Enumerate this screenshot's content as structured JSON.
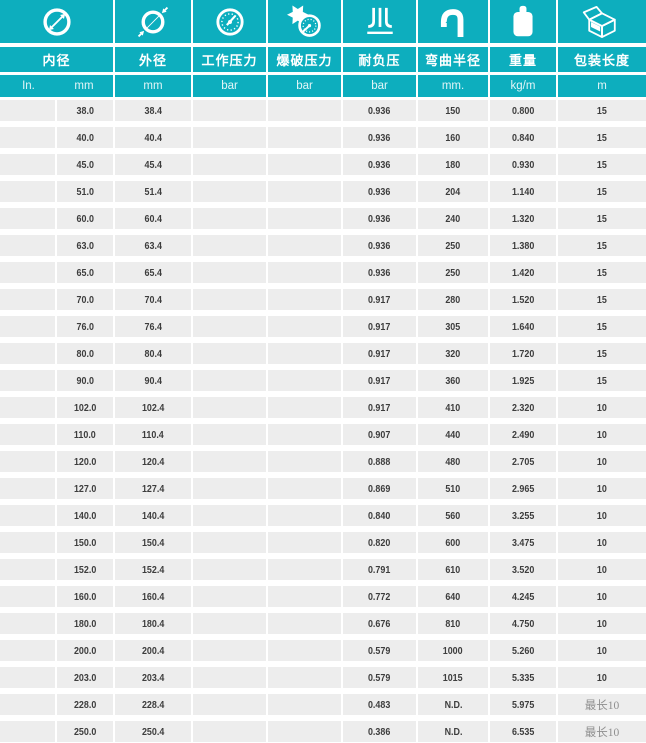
{
  "colors": {
    "accent": "#0daebe",
    "row_bg": "#ededed",
    "value_text": "#3d3d3d",
    "muted_text": "#8f8f8f",
    "header_text": "#ffffff"
  },
  "table": {
    "columns": [
      {
        "name": "内径",
        "icon": "inner-diameter-icon",
        "units": [
          "In.",
          "mm"
        ]
      },
      {
        "name": "外径",
        "icon": "outer-diameter-icon",
        "unit": "mm"
      },
      {
        "name": "工作压力",
        "icon": "working-pressure-gauge-icon",
        "unit": "bar"
      },
      {
        "name": "爆破压力",
        "icon": "burst-pressure-gauge-icon",
        "unit": "bar"
      },
      {
        "name": "耐负压",
        "icon": "vacuum-resistance-icon",
        "unit": "bar"
      },
      {
        "name": "弯曲半径",
        "icon": "bend-radius-icon",
        "unit": "mm."
      },
      {
        "name": "重量",
        "icon": "weight-icon",
        "unit": "kg/m"
      },
      {
        "name": "包装长度",
        "icon": "package-box-icon",
        "unit": "m"
      }
    ],
    "rows": [
      [
        "",
        "38.0",
        "38.4",
        "",
        "",
        "0.936",
        "150",
        "0.800",
        "15"
      ],
      [
        "",
        "40.0",
        "40.4",
        "",
        "",
        "0.936",
        "160",
        "0.840",
        "15"
      ],
      [
        "",
        "45.0",
        "45.4",
        "",
        "",
        "0.936",
        "180",
        "0.930",
        "15"
      ],
      [
        "",
        "51.0",
        "51.4",
        "",
        "",
        "0.936",
        "204",
        "1.140",
        "15"
      ],
      [
        "",
        "60.0",
        "60.4",
        "",
        "",
        "0.936",
        "240",
        "1.320",
        "15"
      ],
      [
        "",
        "63.0",
        "63.4",
        "",
        "",
        "0.936",
        "250",
        "1.380",
        "15"
      ],
      [
        "",
        "65.0",
        "65.4",
        "",
        "",
        "0.936",
        "250",
        "1.420",
        "15"
      ],
      [
        "",
        "70.0",
        "70.4",
        "",
        "",
        "0.917",
        "280",
        "1.520",
        "15"
      ],
      [
        "",
        "76.0",
        "76.4",
        "",
        "",
        "0.917",
        "305",
        "1.640",
        "15"
      ],
      [
        "",
        "80.0",
        "80.4",
        "",
        "",
        "0.917",
        "320",
        "1.720",
        "15"
      ],
      [
        "",
        "90.0",
        "90.4",
        "",
        "",
        "0.917",
        "360",
        "1.925",
        "15"
      ],
      [
        "",
        "102.0",
        "102.4",
        "",
        "",
        "0.917",
        "410",
        "2.320",
        "10"
      ],
      [
        "",
        "110.0",
        "110.4",
        "",
        "",
        "0.907",
        "440",
        "2.490",
        "10"
      ],
      [
        "",
        "120.0",
        "120.4",
        "",
        "",
        "0.888",
        "480",
        "2.705",
        "10"
      ],
      [
        "",
        "127.0",
        "127.4",
        "",
        "",
        "0.869",
        "510",
        "2.965",
        "10"
      ],
      [
        "",
        "140.0",
        "140.4",
        "",
        "",
        "0.840",
        "560",
        "3.255",
        "10"
      ],
      [
        "",
        "150.0",
        "150.4",
        "",
        "",
        "0.820",
        "600",
        "3.475",
        "10"
      ],
      [
        "",
        "152.0",
        "152.4",
        "",
        "",
        "0.791",
        "610",
        "3.520",
        "10"
      ],
      [
        "",
        "160.0",
        "160.4",
        "",
        "",
        "0.772",
        "640",
        "4.245",
        "10"
      ],
      [
        "",
        "180.0",
        "180.4",
        "",
        "",
        "0.676",
        "810",
        "4.750",
        "10"
      ],
      [
        "",
        "200.0",
        "200.4",
        "",
        "",
        "0.579",
        "1000",
        "5.260",
        "10"
      ],
      [
        "",
        "203.0",
        "203.4",
        "",
        "",
        "0.579",
        "1015",
        "5.335",
        "10"
      ],
      [
        "",
        "228.0",
        "228.4",
        "",
        "",
        "0.483",
        "N.D.",
        "5.975",
        "最长10"
      ],
      [
        "",
        "250.0",
        "250.4",
        "",
        "",
        "0.386",
        "N.D.",
        "6.535",
        "最长10"
      ]
    ],
    "max_length_prefix": "最长"
  }
}
